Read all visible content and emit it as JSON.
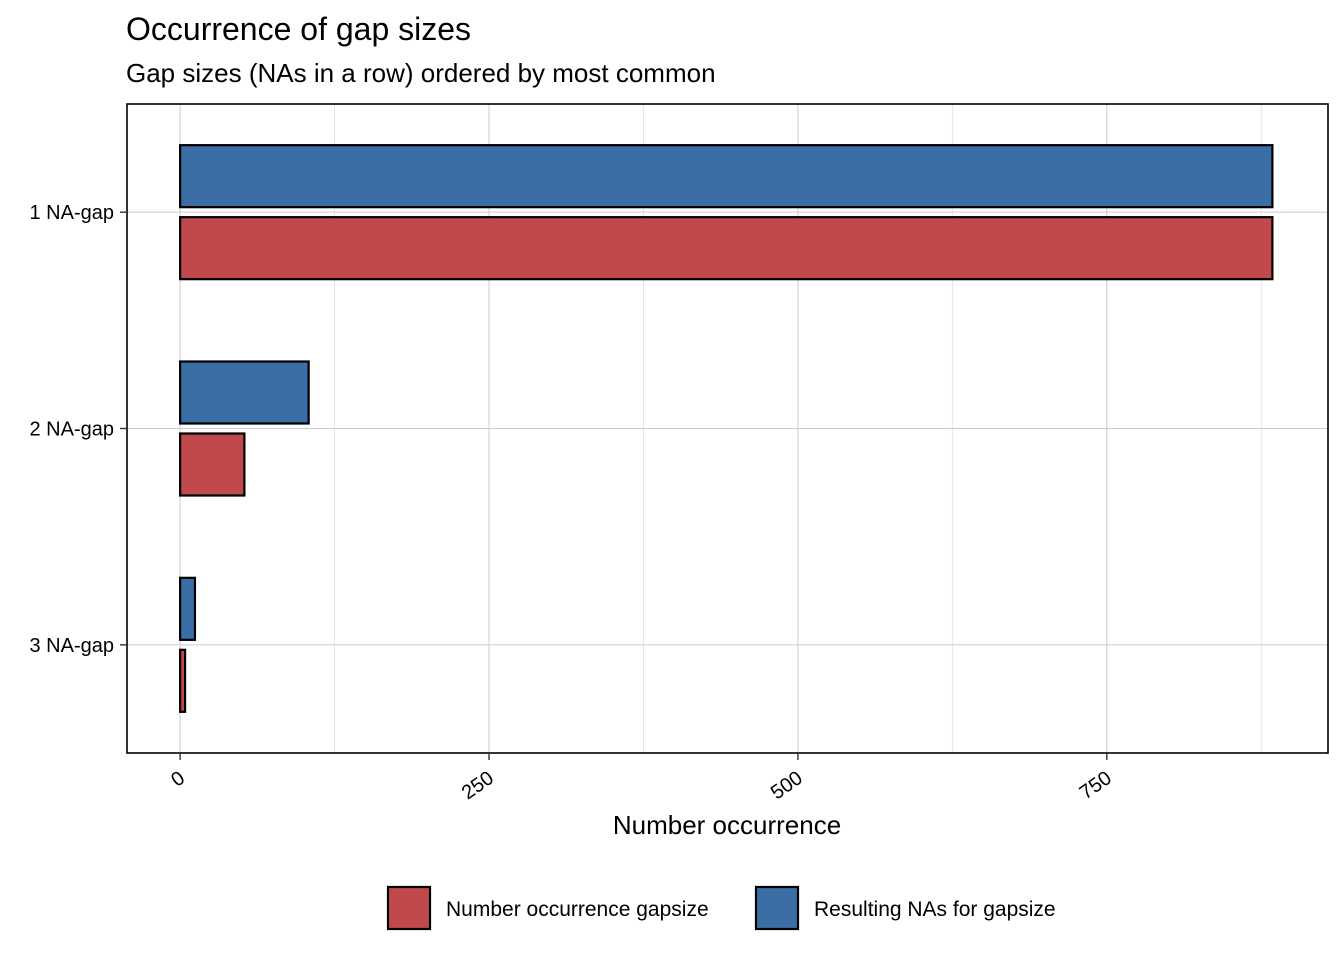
{
  "chart_data": {
    "type": "bar",
    "orientation": "horizontal",
    "title": "Occurrence of gap sizes",
    "subtitle": "Gap sizes (NAs in a row) ordered by most common",
    "xlabel": "Number occurrence",
    "ylabel": "",
    "categories": [
      "1 NA-gap",
      "2 NA-gap",
      "3 NA-gap"
    ],
    "series": [
      {
        "name": "Resulting NAs for gapsize",
        "color": "#3A6EA5",
        "values": [
          884,
          104,
          12
        ]
      },
      {
        "name": "Number occurrence gapsize",
        "color": "#C0494C",
        "values": [
          884,
          52,
          4
        ]
      }
    ],
    "xlim": [
      -43,
      929
    ],
    "x_ticks": [
      0,
      250,
      500,
      750
    ],
    "x_tick_labels": [
      "0",
      "250",
      "500",
      "750"
    ],
    "grid": true,
    "legend_position": "bottom",
    "legend_order": [
      "Number occurrence gapsize",
      "Resulting NAs for gapsize"
    ]
  }
}
